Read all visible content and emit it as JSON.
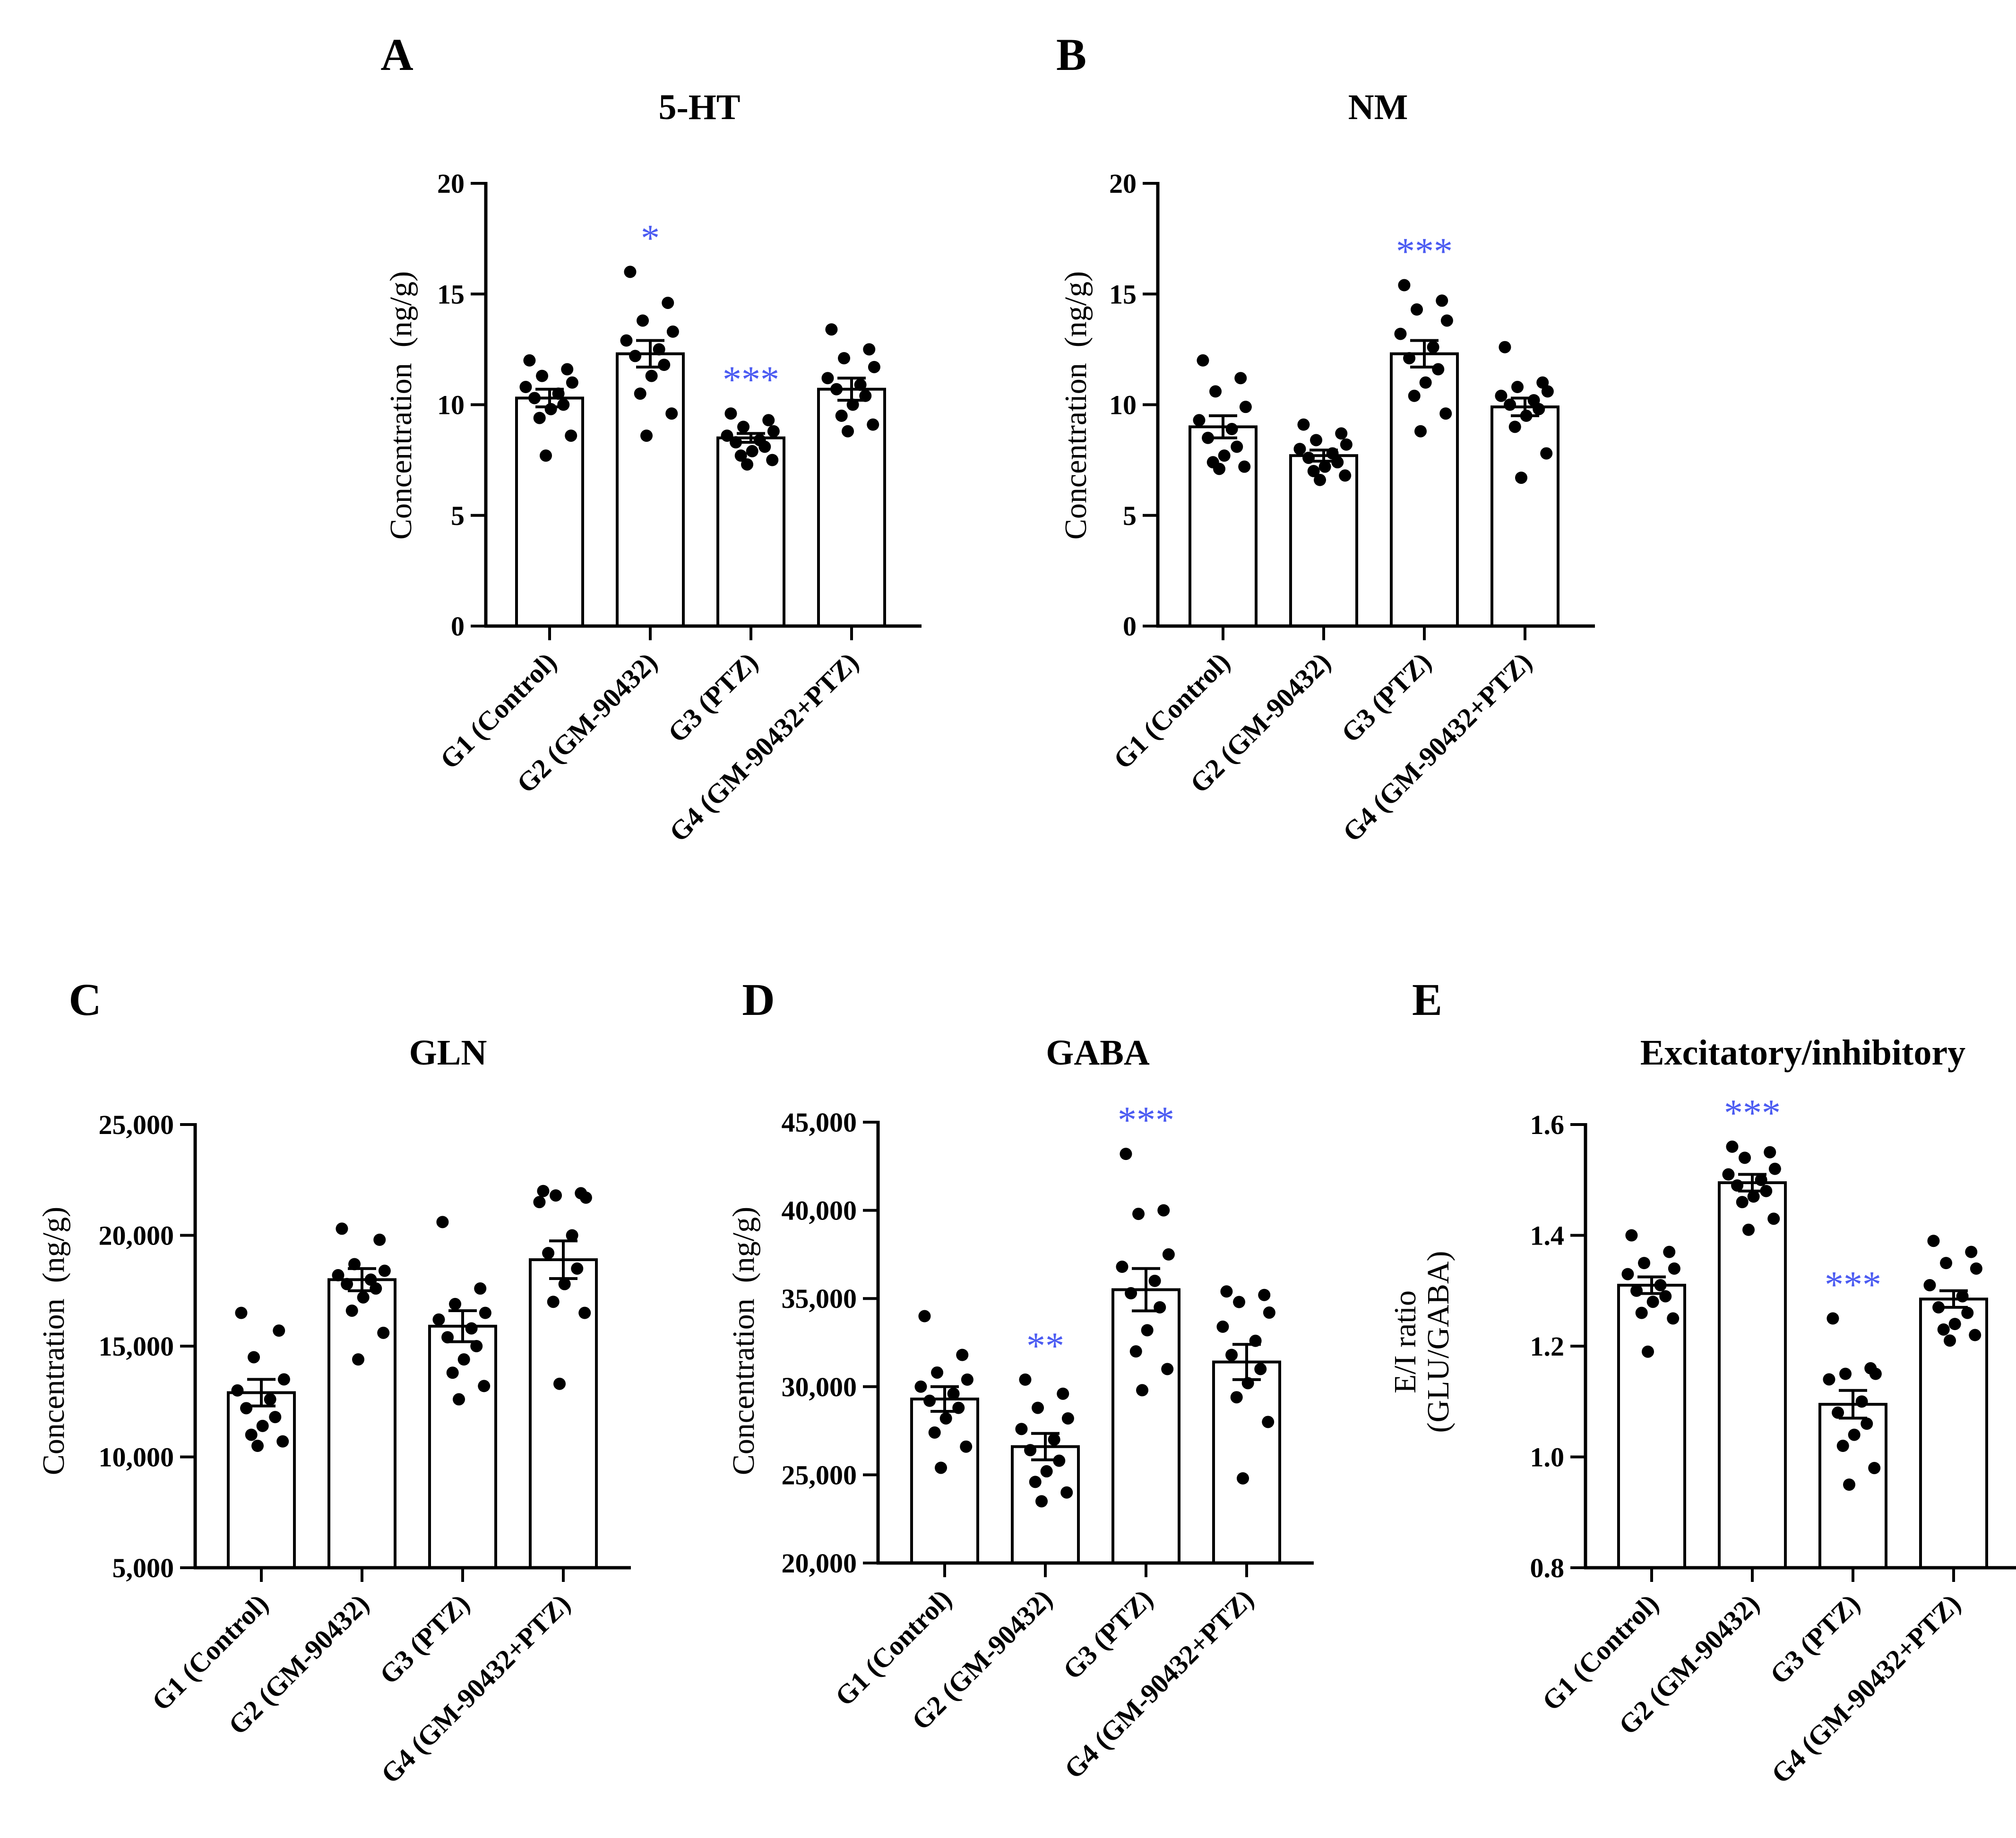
{
  "colors": {
    "significance": "#4b5bf2",
    "bar_fill": "#ffffff",
    "ink": "#000000"
  },
  "chart_data": [
    {
      "type": "bar",
      "panel": "A",
      "title": "5-HT",
      "ylabel": "Concentration  (ng/g)",
      "ylim": [
        0,
        20
      ],
      "yticks": [
        0,
        5,
        10,
        15,
        20
      ],
      "ytick_labels": [
        "0",
        "5",
        "10",
        "15",
        "20"
      ],
      "categories": [
        "G1 (Control)",
        "G2 (GM-90432)",
        "G3 (PTZ)",
        "G4 (GM-90432+PTZ)"
      ],
      "values": [
        10.3,
        12.3,
        8.5,
        10.7
      ],
      "sem": [
        0.4,
        0.6,
        0.2,
        0.5
      ],
      "points": [
        [
          12.0,
          11.6,
          11.3,
          11.0,
          10.8,
          10.5,
          10.3,
          10.0,
          9.8,
          9.4,
          8.6,
          7.7
        ],
        [
          16.0,
          14.6,
          13.8,
          13.3,
          12.9,
          12.5,
          12.2,
          11.8,
          11.3,
          10.5,
          9.6,
          8.6
        ],
        [
          9.6,
          9.3,
          9.0,
          8.8,
          8.6,
          8.4,
          8.3,
          8.1,
          7.9,
          7.7,
          7.5,
          7.3
        ],
        [
          13.4,
          12.5,
          12.1,
          11.7,
          11.2,
          10.9,
          10.7,
          10.4,
          10.0,
          9.5,
          9.1,
          8.8
        ]
      ],
      "significance": [
        "",
        "*",
        "***",
        ""
      ]
    },
    {
      "type": "bar",
      "panel": "B",
      "title": "NM",
      "ylabel": "Concentration  (ng/g)",
      "ylim": [
        0,
        20
      ],
      "yticks": [
        0,
        5,
        10,
        15,
        20
      ],
      "ytick_labels": [
        "0",
        "5",
        "10",
        "15",
        "20"
      ],
      "categories": [
        "G1 (Control)",
        "G2 (GM-90432)",
        "G3 (PTZ)",
        "G4 (GM-90432+PTZ)"
      ],
      "values": [
        9.0,
        7.7,
        12.3,
        9.9
      ],
      "sem": [
        0.5,
        0.25,
        0.6,
        0.4
      ],
      "points": [
        [
          12.0,
          11.2,
          10.6,
          9.9,
          9.3,
          8.9,
          8.5,
          8.1,
          7.7,
          7.4,
          7.2,
          7.1
        ],
        [
          9.1,
          8.7,
          8.4,
          8.2,
          8.0,
          7.8,
          7.6,
          7.4,
          7.2,
          7.0,
          6.8,
          6.6
        ],
        [
          15.4,
          14.7,
          14.3,
          13.8,
          13.2,
          12.6,
          12.1,
          11.6,
          11.0,
          10.4,
          9.6,
          8.8
        ],
        [
          12.6,
          11.0,
          10.8,
          10.6,
          10.4,
          10.2,
          10.0,
          9.8,
          9.5,
          9.0,
          7.8,
          6.7
        ]
      ],
      "significance": [
        "",
        "",
        "***",
        ""
      ]
    },
    {
      "type": "bar",
      "panel": "C",
      "title": "GLN",
      "ylabel": "Concentration  (ng/g)",
      "ylim": [
        5000,
        25000
      ],
      "yticks": [
        5000,
        10000,
        15000,
        20000,
        25000
      ],
      "ytick_labels": [
        "5,000",
        "10,000",
        "15,000",
        "20,000",
        "25,000"
      ],
      "categories": [
        "G1 (Control)",
        "G2 (GM-90432)",
        "G3 (PTZ)",
        "G4 (GM-90432+PTZ)"
      ],
      "values": [
        12900,
        18000,
        15900,
        18900
      ],
      "sem": [
        600,
        500,
        700,
        850
      ],
      "points": [
        [
          16500,
          15700,
          14500,
          13500,
          13000,
          12600,
          12200,
          11800,
          11400,
          11000,
          10700,
          10500
        ],
        [
          20300,
          19800,
          18700,
          18400,
          18200,
          18000,
          17800,
          17600,
          17200,
          16600,
          15600,
          14400
        ],
        [
          20600,
          17600,
          16900,
          16500,
          16200,
          15800,
          15400,
          15000,
          14400,
          13800,
          13200,
          12600
        ],
        [
          22000,
          21900,
          21800,
          21700,
          21500,
          20000,
          19200,
          18500,
          17800,
          17000,
          16500,
          13300
        ]
      ],
      "significance": [
        "",
        "",
        "",
        ""
      ]
    },
    {
      "type": "bar",
      "panel": "D",
      "title": "GABA",
      "ylabel": "Concentration  (ng/g)",
      "ylim": [
        20000,
        45000
      ],
      "yticks": [
        20000,
        25000,
        30000,
        35000,
        40000,
        45000
      ],
      "ytick_labels": [
        "20,000",
        "25,000",
        "30,000",
        "35,000",
        "40,000",
        "45,000"
      ],
      "categories": [
        "G1 (Control)",
        "G2 (GM-90432)",
        "G3 (PTZ)",
        "G4 (GM-90432+PTZ)"
      ],
      "values": [
        29300,
        26600,
        35500,
        31400
      ],
      "sem": [
        700,
        750,
        1200,
        1000
      ],
      "points": [
        [
          34000,
          31800,
          30800,
          30400,
          30000,
          29600,
          29200,
          28800,
          28200,
          27400,
          26600,
          25400
        ],
        [
          30400,
          29600,
          28800,
          28200,
          27600,
          27000,
          26400,
          25800,
          25200,
          24600,
          24000,
          23500
        ],
        [
          43200,
          40000,
          39800,
          37500,
          36800,
          36000,
          35300,
          34500,
          33200,
          32000,
          31000,
          29800
        ],
        [
          35400,
          35200,
          34800,
          34200,
          33400,
          32600,
          31800,
          31000,
          30200,
          29400,
          28000,
          24800
        ]
      ],
      "significance": [
        "",
        "**",
        "***",
        ""
      ]
    },
    {
      "type": "bar",
      "panel": "E",
      "title": "Excitatory/inhibitory",
      "ylabel": [
        "E/I ratio",
        "(GLU/GABA)"
      ],
      "ylim": [
        0.8,
        1.6
      ],
      "yticks": [
        0.8,
        1.0,
        1.2,
        1.4,
        1.6
      ],
      "ytick_labels": [
        "0.8",
        "1.0",
        "1.2",
        "1.4",
        "1.6"
      ],
      "categories": [
        "G1 (Control)",
        "G2 (GM-90432)",
        "G3 (PTZ)",
        "G4 (GM-90432+PTZ)"
      ],
      "values": [
        1.31,
        1.495,
        1.095,
        1.285
      ],
      "sem": [
        0.015,
        0.015,
        0.025,
        0.015
      ],
      "points": [
        [
          1.4,
          1.37,
          1.35,
          1.34,
          1.33,
          1.31,
          1.3,
          1.29,
          1.28,
          1.26,
          1.25,
          1.19
        ],
        [
          1.56,
          1.55,
          1.54,
          1.52,
          1.51,
          1.5,
          1.49,
          1.48,
          1.47,
          1.46,
          1.43,
          1.41
        ],
        [
          1.25,
          1.16,
          1.15,
          1.15,
          1.14,
          1.1,
          1.08,
          1.06,
          1.04,
          1.02,
          0.98,
          0.95
        ],
        [
          1.39,
          1.37,
          1.35,
          1.34,
          1.31,
          1.29,
          1.27,
          1.26,
          1.24,
          1.23,
          1.22,
          1.21
        ]
      ],
      "significance": [
        "",
        "***",
        "***",
        ""
      ]
    }
  ]
}
